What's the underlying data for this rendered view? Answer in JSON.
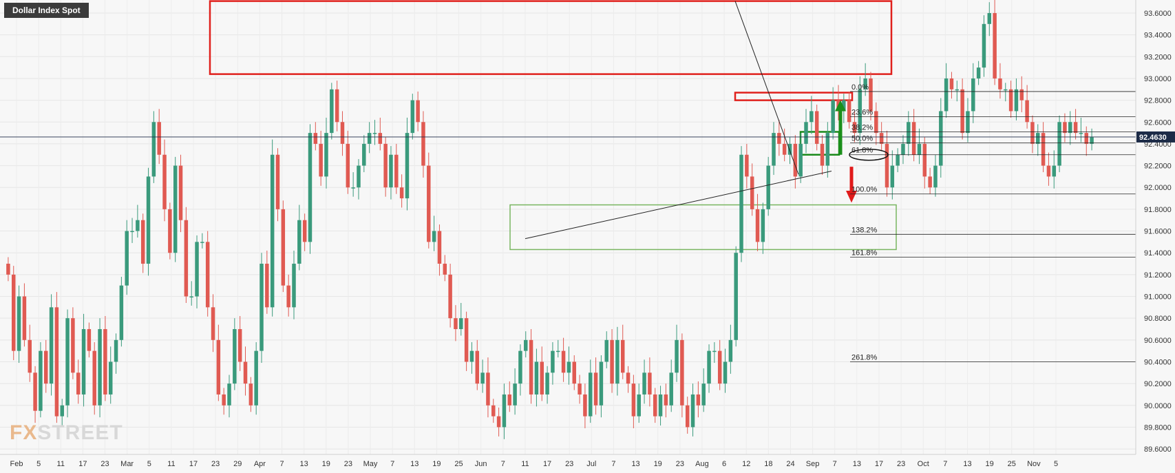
{
  "chart_data": {
    "type": "candlestick",
    "title": "Dollar Index Spot",
    "last_price": "92.4630",
    "y_range": [
      89.55,
      93.72
    ],
    "y_ticks": [
      "93.6000",
      "93.4000",
      "93.2000",
      "93.0000",
      "92.8000",
      "92.6000",
      "92.4000",
      "92.2000",
      "92.0000",
      "91.8000",
      "91.6000",
      "91.4000",
      "91.2000",
      "91.0000",
      "90.8000",
      "90.6000",
      "90.4000",
      "90.2000",
      "90.0000",
      "89.8000",
      "89.6000"
    ],
    "x_tick_labels": [
      "Feb",
      "5",
      "11",
      "17",
      "23",
      "Mar",
      "5",
      "11",
      "17",
      "23",
      "29",
      "Apr",
      "7",
      "13",
      "19",
      "23",
      "May",
      "7",
      "13",
      "19",
      "25",
      "Jun",
      "7",
      "11",
      "17",
      "23",
      "Jul",
      "7",
      "13",
      "19",
      "23",
      "Aug",
      "6",
      "12",
      "18",
      "24",
      "Sep",
      "7",
      "13",
      "17",
      "23",
      "Oct",
      "7",
      "13",
      "19",
      "25",
      "Nov",
      "5"
    ],
    "colors": {
      "up": "#3a9a7c",
      "down": "#e05a52",
      "zone": "#e0201c",
      "green": "#1a8a1a",
      "support": "#79b560",
      "arrow_up": "#1b8f1b",
      "arrow_down": "#e01a1a",
      "price_label": "#1c2b47"
    },
    "closes": [
      91.2,
      90.5,
      91.0,
      90.6,
      90.3,
      89.95,
      90.5,
      90.2,
      90.9,
      89.9,
      90.0,
      90.8,
      90.3,
      90.1,
      90.7,
      90.5,
      90.0,
      90.7,
      90.1,
      90.4,
      90.6,
      91.1,
      91.6,
      91.6,
      91.7,
      91.3,
      92.1,
      92.6,
      92.3,
      91.8,
      91.4,
      92.2,
      91.7,
      91.0,
      91.0,
      91.5,
      91.5,
      90.9,
      90.6,
      90.1,
      90.0,
      90.2,
      90.7,
      90.4,
      90.2,
      90.0,
      90.5,
      91.3,
      90.9,
      92.3,
      91.8,
      91.1,
      90.9,
      91.3,
      91.7,
      91.5,
      92.5,
      92.4,
      92.1,
      92.5,
      92.9,
      92.6,
      92.4,
      92.0,
      92.0,
      92.2,
      92.4,
      92.5,
      92.5,
      92.4,
      92.0,
      92.3,
      92.0,
      91.9,
      92.5,
      92.8,
      92.6,
      92.2,
      91.5,
      91.6,
      91.3,
      91.2,
      90.8,
      90.7,
      90.8,
      90.4,
      90.5,
      90.2,
      90.3,
      90.0,
      89.9,
      89.8,
      90.1,
      90.0,
      90.2,
      90.5,
      90.6,
      90.1,
      90.4,
      90.1,
      90.3,
      90.5,
      90.5,
      90.3,
      90.4,
      90.2,
      90.1,
      89.9,
      90.3,
      90.0,
      90.4,
      90.6,
      90.2,
      90.6,
      90.3,
      90.2,
      89.9,
      90.1,
      90.3,
      90.1,
      89.9,
      90.1,
      90.0,
      90.3,
      90.6,
      90.0,
      89.8,
      90.1,
      90.0,
      90.2,
      90.5,
      90.5,
      90.2,
      90.4,
      90.6,
      91.4,
      92.3,
      92.1,
      91.8,
      91.5,
      91.8,
      92.2,
      92.5,
      92.4,
      92.3,
      92.4,
      92.1,
      92.4,
      92.6,
      92.7,
      92.4,
      92.2,
      92.5,
      92.8,
      92.7,
      92.8,
      92.6,
      92.5,
      92.9,
      93.0,
      92.7,
      92.5,
      92.4,
      92.0,
      92.2,
      92.3,
      92.4,
      92.6,
      92.3,
      92.4,
      92.1,
      92.0,
      92.2,
      92.7,
      93.0,
      92.9,
      92.9,
      92.5,
      92.7,
      93.0,
      93.1,
      93.5,
      93.6,
      93.0,
      92.9,
      92.9,
      92.7,
      92.9,
      92.8,
      92.6,
      92.4,
      92.5,
      92.2,
      92.1,
      92.2,
      92.6,
      92.5,
      92.6,
      92.5,
      92.5,
      92.4,
      92.46
    ]
  },
  "annotations": {
    "fib_levels": [
      {
        "label": "0.0%",
        "value": 92.88
      },
      {
        "label": "23.6%",
        "value": 92.65
      },
      {
        "label": "38.2%",
        "value": 92.51
      },
      {
        "label": "50.0%",
        "value": 92.41
      },
      {
        "label": "61.8%",
        "value": 92.3
      },
      {
        "label": "100.0%",
        "value": 91.94
      },
      {
        "label": "138.2%",
        "value": 91.57
      },
      {
        "label": "161.8%",
        "value": 91.36
      },
      {
        "label": "261.8%",
        "value": 90.4
      }
    ]
  },
  "branding": {
    "logo_prefix": "FX",
    "logo_suffix": "STREET"
  }
}
